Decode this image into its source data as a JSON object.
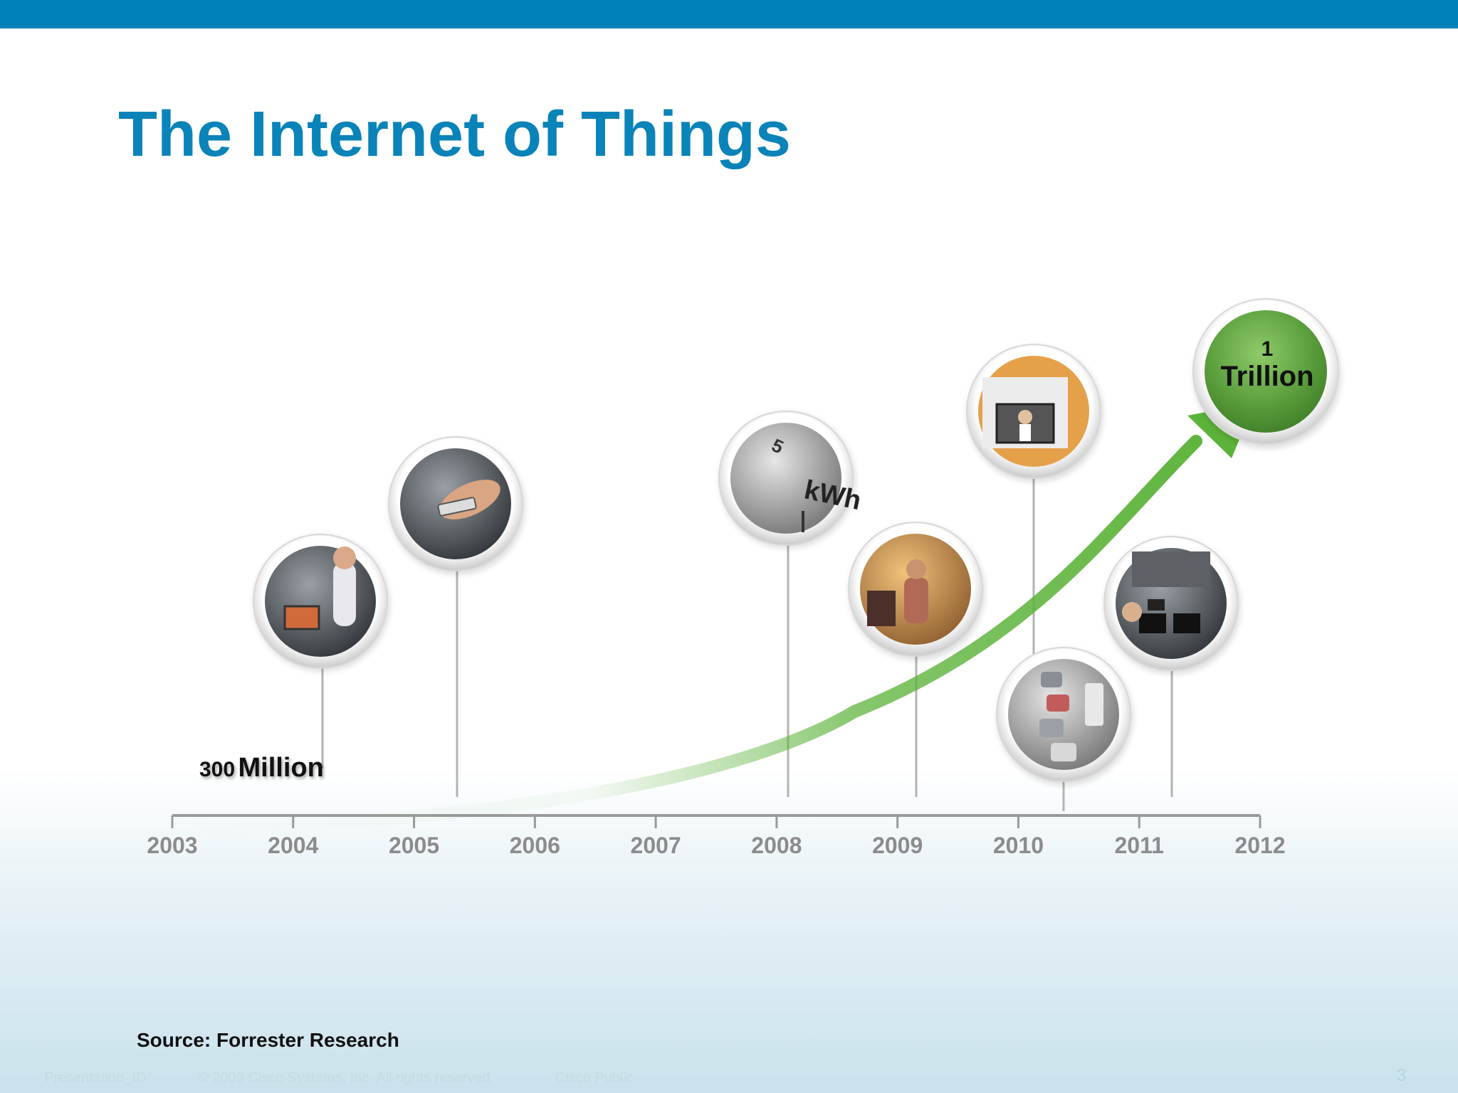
{
  "slide": {
    "title": "The Internet of Things",
    "source": "Source: Forrester Research",
    "footer": {
      "presentation_id": "Presentation_ID",
      "copyright": "© 2009 Cisco Systems, Inc. All rights reserved.",
      "classification": "Cisco Public",
      "page_number": "3"
    },
    "colors": {
      "top_bar": "#0082b8",
      "title": "#0a83b8",
      "growth_arrow": "#5cb33a",
      "end_circle": "#5b9e3c"
    }
  },
  "timeline": {
    "years": [
      "2003",
      "2004",
      "2005",
      "2006",
      "2007",
      "2008",
      "2009",
      "2010",
      "2011",
      "2012"
    ],
    "start_label": {
      "number": "300",
      "unit": "Million"
    },
    "end_label": {
      "number": "1",
      "unit": "Trillion"
    },
    "milestones": [
      {
        "name": "person-at-computer",
        "icon": "computer-user-icon"
      },
      {
        "name": "mobile-phone",
        "icon": "mobile-phone-icon"
      },
      {
        "name": "energy-meter",
        "icon": "kwh-meter-icon",
        "text": "kWh"
      },
      {
        "name": "retail-store",
        "icon": "shopping-icon"
      },
      {
        "name": "video-conference",
        "icon": "telepresence-icon"
      },
      {
        "name": "traffic",
        "icon": "traffic-cars-icon"
      },
      {
        "name": "classroom",
        "icon": "classroom-computers-icon"
      }
    ]
  }
}
